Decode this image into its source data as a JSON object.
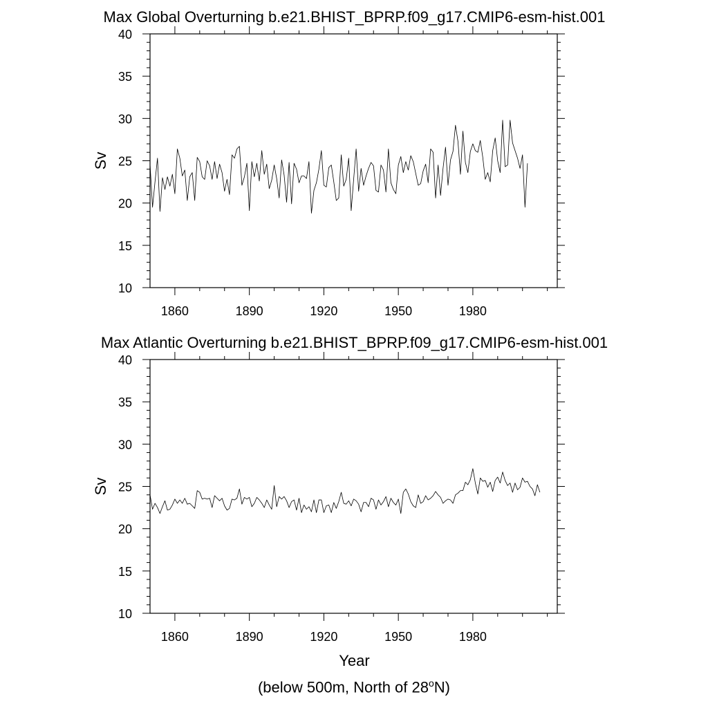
{
  "figure": {
    "caption_prefix": "(below 500m, North of 28",
    "caption_sup": "o",
    "caption_suffix": "N)",
    "line_color": "#000000"
  },
  "chart_data": [
    {
      "type": "line",
      "title": "Max Global Overturning b.e21.BHIST_BPRP.f09_g17.CMIP6-esm-hist.001",
      "xlabel": "",
      "ylabel": "Sv",
      "xlim": [
        1850,
        2014
      ],
      "ylim": [
        10,
        40
      ],
      "xticks": [
        1860,
        1890,
        1920,
        1950,
        1980
      ],
      "yticks": [
        10,
        15,
        20,
        25,
        30,
        35,
        40
      ],
      "grid": false,
      "x_start": 1850,
      "values": [
        24.6,
        19.5,
        22.5,
        25.3,
        19.0,
        23.0,
        21.6,
        23.1,
        22.0,
        23.4,
        21.1,
        26.4,
        25.3,
        23.2,
        23.9,
        20.3,
        23.1,
        23.6,
        20.3,
        25.4,
        24.9,
        23.1,
        22.8,
        25.0,
        24.4,
        22.8,
        24.9,
        22.9,
        24.6,
        23.6,
        21.4,
        22.8,
        21.0,
        25.7,
        25.3,
        26.4,
        26.7,
        22.1,
        23.1,
        24.7,
        19.1,
        24.9,
        23.1,
        24.7,
        22.6,
        26.2,
        23.4,
        24.6,
        21.7,
        22.7,
        24.5,
        22.9,
        20.6,
        25.1,
        23.3,
        20.1,
        24.8,
        19.9,
        24.7,
        24.0,
        22.4,
        23.2,
        23.2,
        22.9,
        24.9,
        18.8,
        21.5,
        22.4,
        24.0,
        26.2,
        22.1,
        21.9,
        24.2,
        24.5,
        22.5,
        20.3,
        20.6,
        25.7,
        22.0,
        22.8,
        25.3,
        19.1,
        22.8,
        26.4,
        21.4,
        24.1,
        22.1,
        23.2,
        24.1,
        24.8,
        24.4,
        21.5,
        21.3,
        24.5,
        23.9,
        21.3,
        26.4,
        22.4,
        21.6,
        21.1,
        24.5,
        25.5,
        23.6,
        24.9,
        23.9,
        25.6,
        24.9,
        23.5,
        22.1,
        22.3,
        23.8,
        24.6,
        22.4,
        26.4,
        26.0,
        20.6,
        24.5,
        20.9,
        24.1,
        26.6,
        22.1,
        25.1,
        26.1,
        29.2,
        27.3,
        23.4,
        28.5,
        24.8,
        23.6,
        26.1,
        27.0,
        26.2,
        26.0,
        27.4,
        25.4,
        22.8,
        23.6,
        22.5,
        26.2,
        27.7,
        25.0,
        23.6,
        29.8,
        24.3,
        24.5,
        29.8,
        27.1,
        26.2,
        25.3,
        24.1,
        25.7,
        19.5,
        24.7
      ]
    },
    {
      "type": "line",
      "title": "Max Atlantic Overturning b.e21.BHIST_BPRP.f09_g17.CMIP6-esm-hist.001",
      "xlabel": "Year",
      "ylabel": "Sv",
      "xlim": [
        1850,
        2014
      ],
      "ylim": [
        10,
        40
      ],
      "xticks": [
        1860,
        1890,
        1920,
        1950,
        1980
      ],
      "yticks": [
        10,
        15,
        20,
        25,
        30,
        35,
        40
      ],
      "grid": false,
      "x_start": 1850,
      "values": [
        24.0,
        22.3,
        23.0,
        22.5,
        21.8,
        22.6,
        23.3,
        22.2,
        22.3,
        22.8,
        23.5,
        23.0,
        23.4,
        23.0,
        23.6,
        22.9,
        23.0,
        22.7,
        22.4,
        24.5,
        24.3,
        23.5,
        23.6,
        23.5,
        23.6,
        22.5,
        23.9,
        23.6,
        23.3,
        23.6,
        22.7,
        22.2,
        22.4,
        23.5,
        23.4,
        23.6,
        24.7,
        22.9,
        23.7,
        23.5,
        23.7,
        22.6,
        23.0,
        23.7,
        23.4,
        23.0,
        22.5,
        23.4,
        22.8,
        22.3,
        25.1,
        22.6,
        23.8,
        23.5,
        23.8,
        23.3,
        22.5,
        23.2,
        23.4,
        22.2,
        23.6,
        21.9,
        22.8,
        22.3,
        22.6,
        22.0,
        23.4,
        21.9,
        23.4,
        23.4,
        21.9,
        22.7,
        22.8,
        21.9,
        23.1,
        22.4,
        23.2,
        24.3,
        23.0,
        22.9,
        23.3,
        22.7,
        23.5,
        23.3,
        22.9,
        22.0,
        23.1,
        23.1,
        22.6,
        23.6,
        23.4,
        22.3,
        23.4,
        22.8,
        23.2,
        23.8,
        22.6,
        23.6,
        23.1,
        22.8,
        23.5,
        21.8,
        24.3,
        24.7,
        24.1,
        23.2,
        22.7,
        22.5,
        24.0,
        23.0,
        23.2,
        23.9,
        23.4,
        23.6,
        23.9,
        24.4,
        24.0,
        23.7,
        23.0,
        23.3,
        23.5,
        23.4,
        23.0,
        24.0,
        24.2,
        24.5,
        24.5,
        25.5,
        25.2,
        25.8,
        27.1,
        25.4,
        24.1,
        26.0,
        25.6,
        25.7,
        24.9,
        25.5,
        24.4,
        25.7,
        26.1,
        25.4,
        26.7,
        25.7,
        25.1,
        25.4,
        24.3,
        25.4,
        24.6,
        24.9,
        26.0,
        25.5,
        25.6,
        25.0,
        24.7,
        23.9,
        25.2,
        24.3
      ]
    }
  ]
}
